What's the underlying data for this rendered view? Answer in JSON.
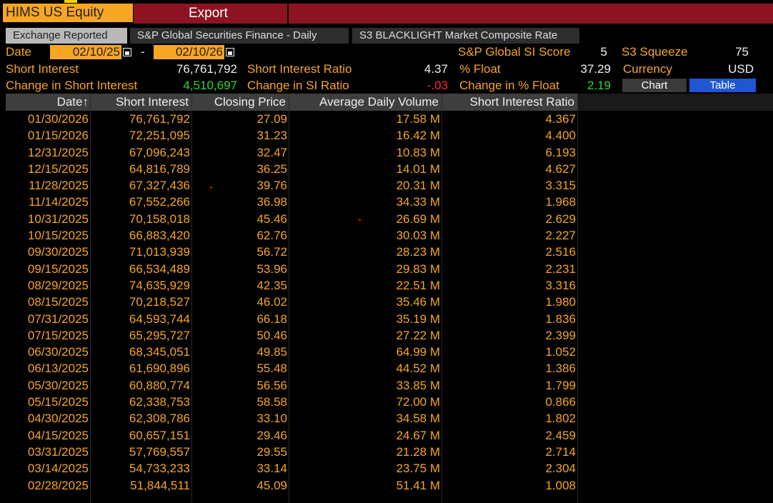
{
  "header": {
    "ticker": "HIMS US Equity",
    "export_label": "Export"
  },
  "tabs": [
    {
      "label": "Exchange Reported",
      "active": true
    },
    {
      "label": "S&P Global Securities Finance - Daily",
      "active": false
    },
    {
      "label": "S3 BLACKLIGHT Market Composite Rate",
      "active": false
    }
  ],
  "summary": {
    "date_label": "Date",
    "start_date": "02/10/25",
    "date_separator": "-",
    "end_date": "02/10/26",
    "si_score_label": "S&P Global SI Score",
    "si_score_value": "5",
    "s3_squeeze_label": "S3 Squeeze",
    "s3_squeeze_value": "75",
    "short_interest_label": "Short Interest",
    "short_interest_value": "76,761,792",
    "si_ratio_label": "Short Interest Ratio",
    "si_ratio_value": "4.37",
    "pct_float_label": "% Float",
    "pct_float_value": "37.29",
    "currency_label": "Currency",
    "currency_value": "USD",
    "chg_si_label": "Change in Short Interest",
    "chg_si_value": "4,510,697",
    "chg_si_ratio_label": "Change in SI Ratio",
    "chg_si_ratio_value": "-.03",
    "chg_pct_float_label": "Change in % Float",
    "chg_pct_float_value": "2.19",
    "chart_button": "Chart",
    "table_button": "Table"
  },
  "table": {
    "columns": [
      "Date↑",
      "Short Interest",
      "Closing Price",
      "Average Daily Volume",
      "Short Interest Ratio"
    ],
    "rows": [
      [
        "01/30/2026",
        "76,761,792",
        "27.09",
        "17.58 M",
        "4.367"
      ],
      [
        "01/15/2026",
        "72,251,095",
        "31.23",
        "16.42 M",
        "4.400"
      ],
      [
        "12/31/2025",
        "67,096,243",
        "32.47",
        "10.83 M",
        "6.193"
      ],
      [
        "12/15/2025",
        "64,816,789",
        "36.25",
        "14.01 M",
        "4.627"
      ],
      [
        "11/28/2025",
        "67,327,436",
        "39.76",
        "20.31 M",
        "3.315"
      ],
      [
        "11/14/2025",
        "67,552,266",
        "36.98",
        "34.33 M",
        "1.968"
      ],
      [
        "10/31/2025",
        "70,158,018",
        "45.46",
        "26.69 M",
        "2.629"
      ],
      [
        "10/15/2025",
        "66,883,420",
        "62.76",
        "30.03 M",
        "2.227"
      ],
      [
        "09/30/2025",
        "71,013,939",
        "56.72",
        "28.23 M",
        "2.516"
      ],
      [
        "09/15/2025",
        "66,534,489",
        "53.96",
        "29.83 M",
        "2.231"
      ],
      [
        "08/29/2025",
        "74,635,929",
        "42.35",
        "22.51 M",
        "3.316"
      ],
      [
        "08/15/2025",
        "70,218,527",
        "46.02",
        "35.46 M",
        "1.980"
      ],
      [
        "07/31/2025",
        "64,593,744",
        "66.18",
        "35.19 M",
        "1.836"
      ],
      [
        "07/15/2025",
        "65,295,727",
        "50.46",
        "27.22 M",
        "2.399"
      ],
      [
        "06/30/2025",
        "68,345,051",
        "49.85",
        "64.99 M",
        "1.052"
      ],
      [
        "06/13/2025",
        "61,690,896",
        "55.48",
        "44.52 M",
        "1.386"
      ],
      [
        "05/30/2025",
        "60,880,774",
        "56.56",
        "33.85 M",
        "1.799"
      ],
      [
        "05/15/2025",
        "62,338,753",
        "58.58",
        "72.00 M",
        "0.866"
      ],
      [
        "04/30/2025",
        "62,308,786",
        "33.10",
        "34.58 M",
        "1.802"
      ],
      [
        "04/15/2025",
        "60,657,151",
        "29.46",
        "24.67 M",
        "2.459"
      ],
      [
        "03/31/2025",
        "57,769,557",
        "29.55",
        "21.28 M",
        "2.714"
      ],
      [
        "03/14/2025",
        "54,733,233",
        "33.14",
        "23.75 M",
        "2.304"
      ],
      [
        "02/28/2025",
        "51,844,511",
        "45.09",
        "51.41 M",
        "1.008"
      ]
    ]
  },
  "colors": {
    "accent_orange": "#f5a623",
    "header_red": "#8c1421",
    "positive_green": "#38d430",
    "negative_red": "#ff2a2a",
    "table_button_blue": "#1f56d4"
  }
}
